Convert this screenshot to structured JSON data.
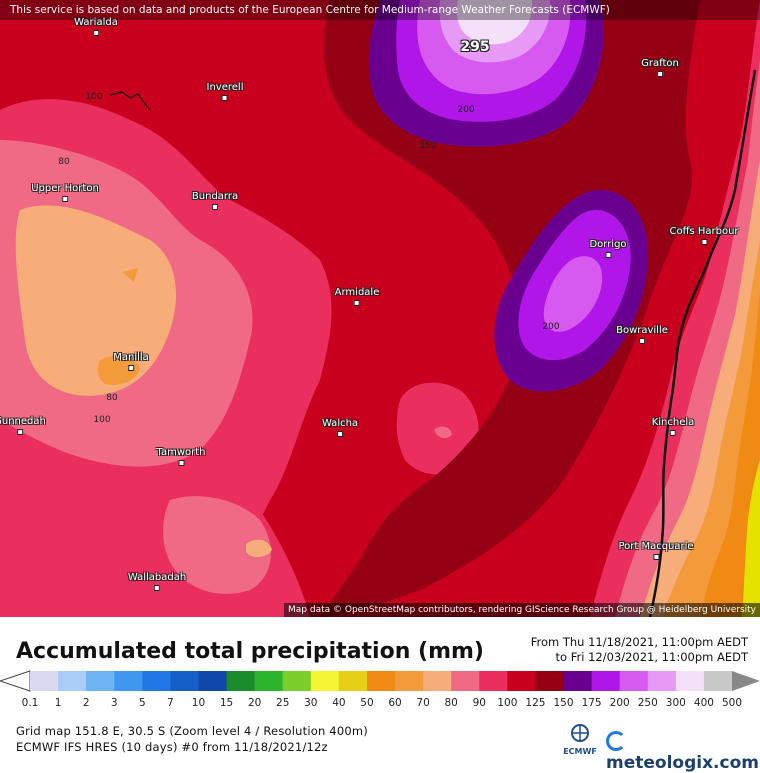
{
  "notice": "This service is based on data and products of the European Centre for Medium-range Weather Forecasts (ECMWF)",
  "attribution": "Map data © OpenStreetMap contributors, rendering GIScience Research Group @ Heidelberg University",
  "map": {
    "max_label": "295",
    "contour_labels": [
      "100",
      "80",
      "200",
      "150",
      "200",
      "80",
      "100"
    ],
    "cities": [
      "Warialda",
      "Inverell",
      "Grafton",
      "Upper Horton",
      "Bundarra",
      "Coffs Harbour",
      "Dorrigo",
      "Armidale",
      "Bowraville",
      "Manilla",
      "Gunnedah",
      "Walcha",
      "Kinchela",
      "Tamworth",
      "Port Macquarie",
      "Wallabadah"
    ]
  },
  "footer": {
    "title": "Accumulated total precipitation (mm)",
    "from": "From Thu 11/18/2021, 11:00pm AEDT",
    "to": "to Fri 12/03/2021, 11:00pm AEDT",
    "grid_info": "Grid map 151.8 E, 30.5 S (Zoom level 4 / Resolution 400m)",
    "model_info": "ECMWF IFS HRES (10 days) #0 from  11/18/2021/12z",
    "ecmwf_logo_text": "ECMWF",
    "brand": "meteologix.com"
  },
  "legend": {
    "ticks": [
      "0.1",
      "1",
      "2",
      "3",
      "5",
      "7",
      "10",
      "15",
      "20",
      "25",
      "30",
      "40",
      "50",
      "60",
      "70",
      "80",
      "90",
      "100",
      "125",
      "150",
      "175",
      "200",
      "250",
      "300",
      "400",
      "500"
    ],
    "colors": [
      "#d9d9f2",
      "#a9cdf7",
      "#6fb3f5",
      "#3f97f0",
      "#1f78e6",
      "#1560c8",
      "#0f48a8",
      "#1a8c2a",
      "#2db42d",
      "#7ccf2a",
      "#f5f536",
      "#e6cf16",
      "#f08a12",
      "#f39a3a",
      "#f6ad7a",
      "#f06a86",
      "#ea2f5e",
      "#c8001e",
      "#960014",
      "#6a0090",
      "#b016e8",
      "#d65af0",
      "#e69af5",
      "#f5e0fa",
      "#c8c8c8"
    ]
  },
  "colors": {
    "background_red": "#c8001e",
    "dark_red": "#960014",
    "coast_line": "#111111"
  }
}
